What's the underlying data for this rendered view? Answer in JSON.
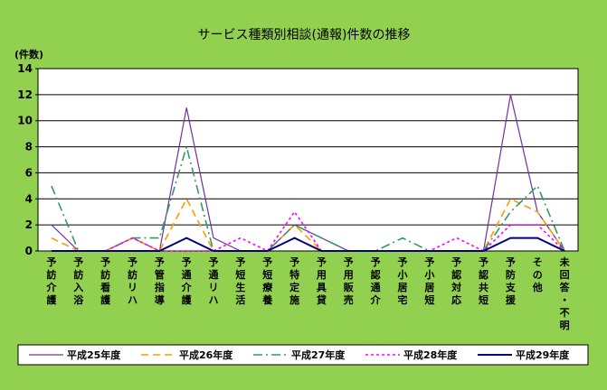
{
  "chart_data": {
    "type": "line",
    "title": "サービス種類別相談(通報)件数の推移",
    "ylabel": "(件数)",
    "ylim": [
      0,
      14
    ],
    "yticks": [
      0,
      2,
      4,
      6,
      8,
      10,
      12,
      14
    ],
    "grid": true,
    "legend_position": "bottom",
    "categories": [
      "予訪介護",
      "予訪入浴",
      "予訪看護",
      "予訪リハ",
      "予管指導",
      "予通介護",
      "予通リハ",
      "予短生活",
      "予短療養",
      "予特定施",
      "予用具貸",
      "予用販売",
      "予認通介",
      "予小居宅",
      "予小居短",
      "予認対応",
      "予認共短",
      "予防支援",
      "その他",
      "未回答・不明"
    ],
    "series": [
      {
        "name": "平成25年度",
        "color": "#7030a0",
        "dash": "solid",
        "width": 1.2,
        "values": [
          2,
          0,
          0,
          1,
          0,
          11,
          1,
          0,
          0,
          2,
          1,
          0,
          0,
          0,
          0,
          0,
          0,
          12,
          3,
          0
        ]
      },
      {
        "name": "平成26年度",
        "color": "#ff9900",
        "dash": "dash",
        "width": 1.6,
        "values": [
          1,
          0,
          0,
          1,
          0,
          4,
          0,
          0,
          0,
          2,
          0,
          0,
          0,
          0,
          0,
          0,
          0,
          4,
          3,
          0
        ]
      },
      {
        "name": "平成27年度",
        "color": "#339966",
        "dash": "dashdot",
        "width": 1.6,
        "values": [
          5,
          0,
          0,
          1,
          1,
          8,
          0,
          0,
          0,
          2,
          1,
          0,
          0,
          1,
          0,
          0,
          0,
          3,
          5,
          0
        ]
      },
      {
        "name": "平成28年度",
        "color": "#ff00ff",
        "dash": "dot",
        "width": 1.6,
        "values": [
          0,
          0,
          0,
          1,
          0,
          0,
          0,
          1,
          0,
          3,
          0,
          0,
          0,
          0,
          0,
          1,
          0,
          2,
          2,
          0
        ]
      },
      {
        "name": "平成29年度",
        "color": "#000080",
        "dash": "solid",
        "width": 2,
        "values": [
          0,
          0,
          0,
          0,
          0,
          1,
          0,
          0,
          0,
          1,
          0,
          0,
          0,
          0,
          0,
          0,
          0,
          1,
          1,
          0
        ]
      }
    ]
  }
}
